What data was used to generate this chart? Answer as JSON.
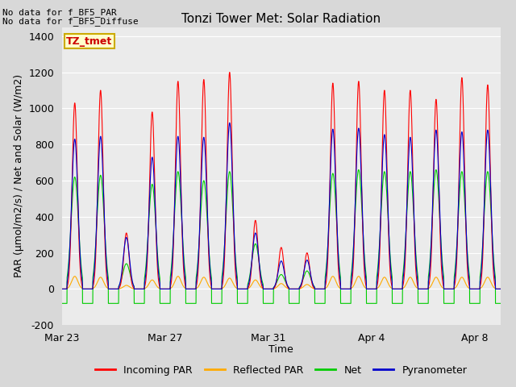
{
  "title": "Tonzi Tower Met: Solar Radiation",
  "xlabel": "Time",
  "ylabel": "PAR (μmol/m2/s) / Net and Solar (W/m2)",
  "ylim": [
    -200,
    1450
  ],
  "yticks": [
    -200,
    0,
    200,
    400,
    600,
    800,
    1000,
    1200,
    1400
  ],
  "fig_bg_color": "#d8d8d8",
  "plot_bg_color": "#ebebeb",
  "annotation_text1": "No data for f_BF5_PAR",
  "annotation_text2": "No data for f_BF5_Diffuse",
  "box_label": "TZ_tmet",
  "box_facecolor": "#ffffcc",
  "box_edgecolor": "#ccaa00",
  "legend_entries": [
    "Incoming PAR",
    "Reflected PAR",
    "Net",
    "Pyranometer"
  ],
  "legend_colors": [
    "#ff0000",
    "#ffaa00",
    "#00cc00",
    "#0000cc"
  ],
  "line_colors": {
    "incoming": "#ff0000",
    "reflected": "#ffaa00",
    "net": "#00cc00",
    "pyranometer": "#0000cc"
  },
  "x_tick_labels": [
    "Mar 23",
    "Mar 27",
    "Mar 31",
    "Apr 4",
    "Apr 8"
  ],
  "x_tick_positions": [
    0,
    4,
    8,
    12,
    16
  ],
  "num_days": 17,
  "day_peaks_incoming": [
    1030,
    1100,
    310,
    980,
    1150,
    1160,
    1200,
    380,
    230,
    200,
    1140,
    1150,
    1100,
    1100,
    1050,
    1170,
    1130
  ],
  "day_peaks_pyranometer": [
    830,
    845,
    285,
    730,
    845,
    840,
    920,
    310,
    155,
    160,
    885,
    890,
    855,
    840,
    880,
    870,
    880
  ],
  "day_peaks_net": [
    620,
    630,
    140,
    580,
    650,
    600,
    650,
    250,
    80,
    100,
    640,
    660,
    650,
    650,
    660,
    650,
    650
  ],
  "day_peaks_reflected": [
    70,
    65,
    20,
    50,
    70,
    65,
    60,
    50,
    30,
    25,
    70,
    70,
    65,
    65,
    65,
    65,
    65
  ],
  "net_night": -80,
  "samples_per_day": 200
}
